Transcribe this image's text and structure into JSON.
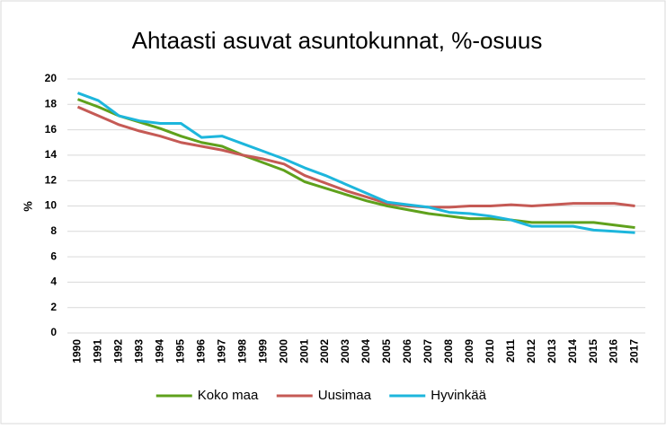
{
  "chart_data": {
    "type": "line",
    "title": "Ahtaasti asuvat asuntokunnat, %-osuus",
    "y_label": "%",
    "categories": [
      "1990",
      "1991",
      "1992",
      "1993",
      "1994",
      "1995",
      "1996",
      "1997",
      "1998",
      "1999",
      "2000",
      "2001",
      "2002",
      "2003",
      "2004",
      "2005",
      "2006",
      "2007",
      "2008",
      "2009",
      "2010",
      "2011",
      "2012",
      "2013",
      "2014",
      "2015",
      "2016",
      "2017"
    ],
    "series": [
      {
        "name": "Koko maa",
        "color": "#5fa11c",
        "values": [
          18.4,
          17.8,
          17.1,
          16.6,
          16.1,
          15.5,
          15.0,
          14.7,
          14.0,
          13.4,
          12.8,
          11.9,
          11.4,
          10.9,
          10.4,
          10.0,
          9.7,
          9.4,
          9.2,
          9.0,
          9.0,
          8.9,
          8.7,
          8.7,
          8.7,
          8.7,
          8.5,
          8.3
        ]
      },
      {
        "name": "Uusimaa",
        "color": "#c55a55",
        "values": [
          17.8,
          17.1,
          16.4,
          15.9,
          15.5,
          15.0,
          14.7,
          14.4,
          14.0,
          13.7,
          13.3,
          12.4,
          11.8,
          11.2,
          10.7,
          10.2,
          10.0,
          9.9,
          9.9,
          10.0,
          10.0,
          10.1,
          10.0,
          10.1,
          10.2,
          10.2,
          10.2,
          10.0
        ]
      },
      {
        "name": "Hyvinkää",
        "color": "#1db6dc",
        "values": [
          18.9,
          18.3,
          17.1,
          16.7,
          16.5,
          16.5,
          15.4,
          15.5,
          14.9,
          14.3,
          13.7,
          13.0,
          12.4,
          11.7,
          11.0,
          10.3,
          10.1,
          9.9,
          9.5,
          9.4,
          9.2,
          8.9,
          8.4,
          8.4,
          8.4,
          8.1,
          8.0,
          7.9
        ]
      }
    ],
    "ylim": [
      0,
      20
    ],
    "yticks": [
      0,
      2,
      4,
      6,
      8,
      10,
      12,
      14,
      16,
      18,
      20
    ],
    "grid": true,
    "legend": "bottom"
  }
}
